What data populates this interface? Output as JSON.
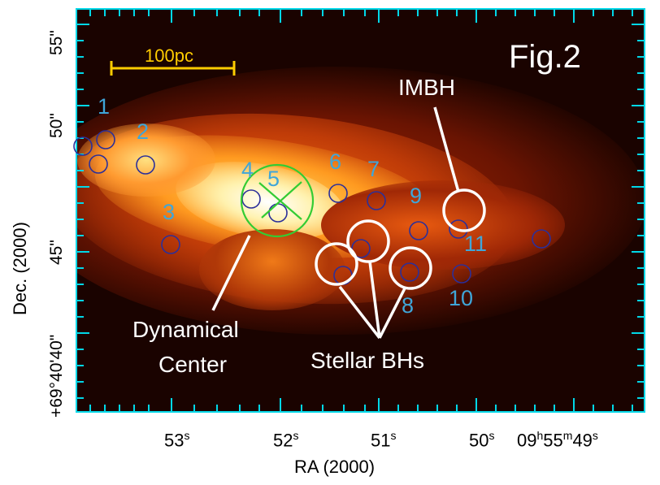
{
  "figure": {
    "title": "Fig.2",
    "scale_bar_label": "100pc",
    "x_axis_label": "RA (2000)",
    "y_axis_label": "Dec. (2000)",
    "y_tick_labels": [
      "55\"",
      "50\"",
      "45\"",
      "+69°40'40\"",
      "40\""
    ],
    "x_tick_labels": [
      {
        "main": "53",
        "sup": "s"
      },
      {
        "main": "52",
        "sup": "s"
      },
      {
        "main": "51",
        "sup": "s"
      },
      {
        "main": "50",
        "sup": "s"
      },
      {
        "main": "09",
        "sup": "h",
        "main2": "55",
        "sup2": "m",
        "main3": "49",
        "sup3": "s"
      }
    ],
    "source_numbers": [
      "1",
      "2",
      "3",
      "4",
      "5",
      "6",
      "7",
      "8",
      "9",
      "10",
      "11"
    ],
    "annotations": {
      "imbh": "IMBH",
      "dynamical_center_line1": "Dynamical",
      "dynamical_center_line2": "Center",
      "stellar_bhs": "Stellar BHs"
    },
    "colors": {
      "axis": "#00d8e8",
      "scale_bar": "#ffcc00",
      "numbers": "#3fa6d9",
      "source_circles": "#2b2f9a",
      "dynamical_center": "#33cc33",
      "annotation": "#ffffff"
    }
  }
}
